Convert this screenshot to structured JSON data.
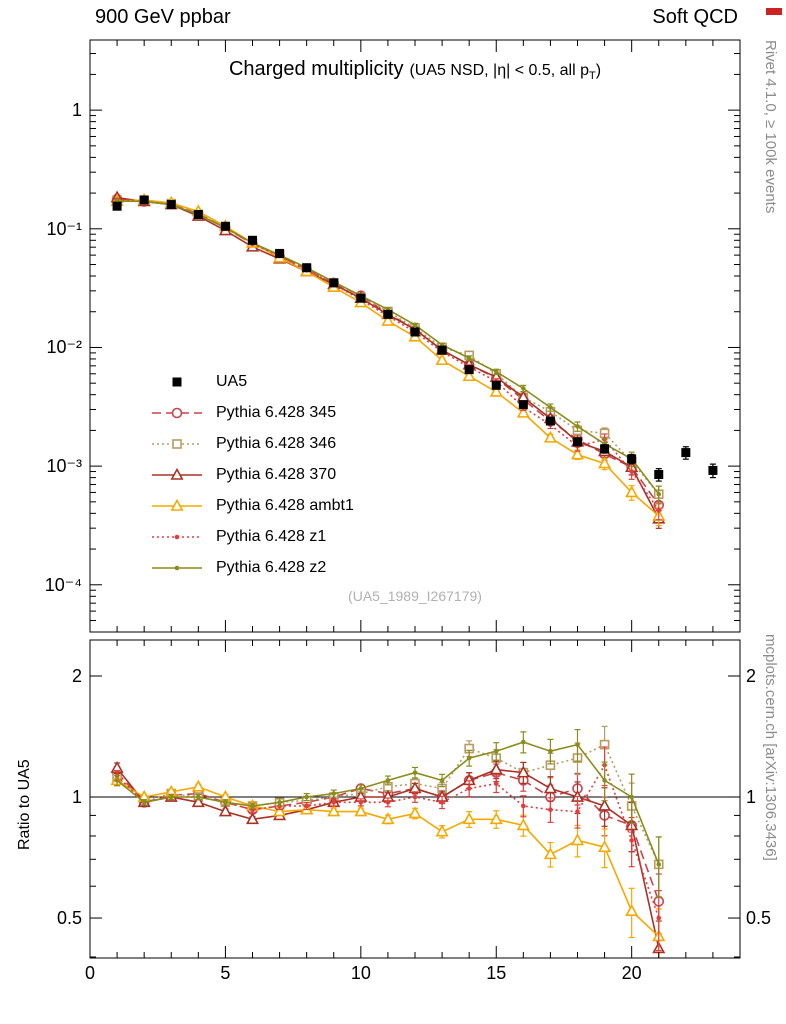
{
  "header": {
    "left": "900 GeV ppbar",
    "right": "Soft QCD"
  },
  "side_labels": {
    "rivet": "Rivet 4.1.0, ≥ 100k events",
    "mcplots": "mcplots.cern.ch [arXiv:1306.3436]"
  },
  "main_panel": {
    "title": "Charged multiplicity",
    "subtitle_pre": "(UA5 NSD, |η| < 0.5, all p",
    "subtitle_sub": "T",
    "subtitle_post": ")",
    "watermark": "(UA5_1989_I267179)"
  },
  "ratio_panel": {
    "ylabel": "Ratio to UA5"
  },
  "decorations": {
    "corner_mark_color": "#cc2222"
  },
  "chart_data": {
    "type": "line",
    "title": "Charged multiplicity (UA5 NSD, |η| < 0.5, all pT)",
    "xlabel": "",
    "ylabel": "",
    "ratio_ylabel": "Ratio to UA5",
    "x_range": [
      0,
      24
    ],
    "xticks": [
      0,
      5,
      10,
      15,
      20
    ],
    "main_axis": {
      "scale": "log",
      "range": [
        4e-05,
        3.9
      ],
      "ticks": [
        {
          "v": 1,
          "label": "1"
        },
        {
          "v": 0.1,
          "label": "10⁻¹"
        },
        {
          "v": 0.01,
          "label": "10⁻²"
        },
        {
          "v": 0.001,
          "label": "10⁻³"
        },
        {
          "v": 0.0001,
          "label": "10⁻⁴"
        }
      ]
    },
    "ratio_axis": {
      "scale": "log",
      "range": [
        0.3977,
        2.458
      ],
      "ticks": [
        {
          "v": 2,
          "label": "2"
        },
        {
          "v": 1,
          "label": "1"
        },
        {
          "v": 0.5,
          "label": "0.5"
        }
      ],
      "minor": [
        0.4,
        0.6,
        0.7,
        0.8,
        0.9
      ]
    },
    "x_mc": [
      1,
      2,
      3,
      4,
      5,
      6,
      7,
      8,
      9,
      10,
      11,
      12,
      13,
      14,
      15,
      16,
      17,
      18,
      19,
      20,
      21
    ],
    "mc_err_rel": [
      0.03,
      0.015,
      0.015,
      0.015,
      0.015,
      0.015,
      0.02,
      0.02,
      0.02,
      0.02,
      0.025,
      0.03,
      0.035,
      0.045,
      0.05,
      0.06,
      0.07,
      0.09,
      0.11,
      0.14,
      0.17
    ],
    "reference": {
      "name": "UA5",
      "color": "#000000",
      "marker": "filled-square",
      "x": [
        1,
        2,
        3,
        4,
        5,
        6,
        7,
        8,
        9,
        10,
        11,
        12,
        13,
        14,
        15,
        16,
        17,
        18,
        19,
        20,
        21,
        22,
        23
      ],
      "y": [
        0.155,
        0.175,
        0.16,
        0.132,
        0.105,
        0.08,
        0.062,
        0.047,
        0.035,
        0.026,
        0.019,
        0.0135,
        0.0095,
        0.0065,
        0.0048,
        0.0033,
        0.0024,
        0.0016,
        0.0014,
        0.00115,
        0.00085,
        0.0013,
        0.00092
      ],
      "err_rel": [
        0.03,
        0.02,
        0.02,
        0.02,
        0.02,
        0.02,
        0.02,
        0.02,
        0.025,
        0.025,
        0.03,
        0.03,
        0.035,
        0.04,
        0.045,
        0.05,
        0.06,
        0.07,
        0.08,
        0.09,
        0.12,
        0.12,
        0.13
      ]
    },
    "series": [
      {
        "name": "Pythia 6.428 345",
        "color": "#c7434e",
        "line": "dashed",
        "marker": "open-circle",
        "y": [
          0.178,
          0.17,
          0.161,
          0.134,
          0.102,
          0.0745,
          0.059,
          0.0456,
          0.035,
          0.0273,
          0.0194,
          0.0142,
          0.0095,
          0.00715,
          0.00552,
          0.00363,
          0.0024,
          0.00168,
          0.00126,
          0.00098,
          0.00047
        ],
        "ratio": [
          1.15,
          0.97,
          1.01,
          1.02,
          0.97,
          0.93,
          0.95,
          0.97,
          1.0,
          1.05,
          1.02,
          1.05,
          1.0,
          1.1,
          1.15,
          1.1,
          1.0,
          1.05,
          0.9,
          0.85,
          0.55
        ]
      },
      {
        "name": "Pythia 6.428 346",
        "color": "#b89b62",
        "line": "dotted",
        "marker": "open-square",
        "y": [
          0.174,
          0.172,
          0.163,
          0.132,
          0.102,
          0.076,
          0.0601,
          0.0461,
          0.035,
          0.0265,
          0.0201,
          0.0146,
          0.01,
          0.00858,
          0.006,
          0.0038,
          0.00288,
          0.002,
          0.00189,
          0.00109,
          0.00058
        ],
        "ratio": [
          1.12,
          0.98,
          1.02,
          1.0,
          0.97,
          0.95,
          0.97,
          0.98,
          1.0,
          1.02,
          1.06,
          1.08,
          1.05,
          1.32,
          1.25,
          1.15,
          1.2,
          1.25,
          1.35,
          0.95,
          0.68
        ]
      },
      {
        "name": "Pythia 6.428 370",
        "color": "#a93226",
        "line": "solid",
        "marker": "open-triangle",
        "y": [
          0.183,
          0.17,
          0.16,
          0.128,
          0.0966,
          0.0704,
          0.0558,
          0.0437,
          0.034,
          0.026,
          0.019,
          0.0142,
          0.0095,
          0.00715,
          0.00562,
          0.0038,
          0.00252,
          0.0016,
          0.00133,
          0.00098,
          0.00036
        ],
        "ratio": [
          1.18,
          0.97,
          1.0,
          0.97,
          0.92,
          0.88,
          0.9,
          0.93,
          0.97,
          1.0,
          1.0,
          1.05,
          1.0,
          1.1,
          1.17,
          1.15,
          1.05,
          1.0,
          0.95,
          0.85,
          0.42
        ]
      },
      {
        "name": "Pythia 6.428 ambt1",
        "color": "#f6a800",
        "line": "solid",
        "marker": "open-triangle",
        "y": [
          0.171,
          0.175,
          0.165,
          0.14,
          0.105,
          0.076,
          0.057,
          0.0437,
          0.0322,
          0.0239,
          0.0167,
          0.0123,
          0.0078,
          0.00572,
          0.00422,
          0.00281,
          0.00173,
          0.00125,
          0.00105,
          0.0006,
          0.00038
        ],
        "ratio": [
          1.1,
          1.0,
          1.03,
          1.06,
          1.0,
          0.95,
          0.92,
          0.93,
          0.92,
          0.92,
          0.88,
          0.91,
          0.82,
          0.88,
          0.88,
          0.85,
          0.72,
          0.78,
          0.75,
          0.52,
          0.45
        ]
      },
      {
        "name": "Pythia 6.428 z1",
        "color": "#e23d3d",
        "line": "dotted",
        "marker": "dot",
        "y": [
          0.175,
          0.17,
          0.16,
          0.132,
          0.102,
          0.0744,
          0.0589,
          0.0447,
          0.034,
          0.0252,
          0.0184,
          0.0135,
          0.0092,
          0.00683,
          0.00518,
          0.00314,
          0.00223,
          0.00147,
          0.00168,
          0.0009,
          0.000425
        ],
        "ratio": [
          1.13,
          0.97,
          1.0,
          1.0,
          0.97,
          0.93,
          0.95,
          0.95,
          0.97,
          0.97,
          0.97,
          1.0,
          0.97,
          1.05,
          1.08,
          0.95,
          0.93,
          0.92,
          1.2,
          0.78,
          0.5
        ]
      },
      {
        "name": "Pythia 6.428 z2",
        "color": "#8a8c1c",
        "line": "solid",
        "marker": "dot",
        "y": [
          0.171,
          0.17,
          0.16,
          0.132,
          0.102,
          0.076,
          0.0601,
          0.047,
          0.0357,
          0.0273,
          0.0209,
          0.0155,
          0.0105,
          0.00813,
          0.00624,
          0.00452,
          0.00312,
          0.00216,
          0.00154,
          0.00115,
          0.00058
        ],
        "ratio": [
          1.1,
          0.97,
          1.0,
          1.0,
          0.97,
          0.95,
          0.97,
          1.0,
          1.02,
          1.05,
          1.1,
          1.15,
          1.1,
          1.25,
          1.3,
          1.37,
          1.3,
          1.35,
          1.1,
          1.0,
          0.68
        ]
      }
    ]
  }
}
